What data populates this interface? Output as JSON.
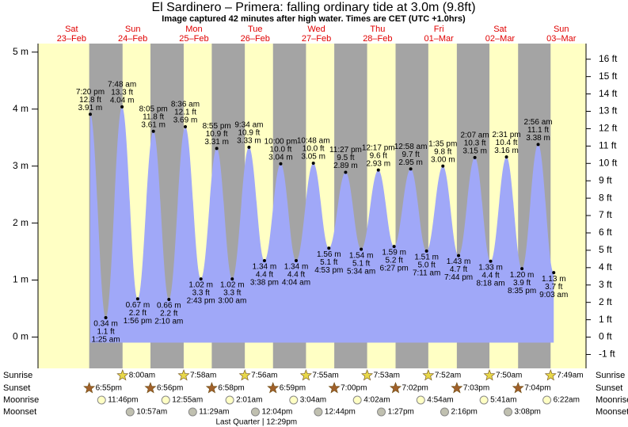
{
  "chart_data": {
    "type": "area",
    "title": "El Sardinero – Primera: falling  ordinary tide at 3.0m (9.8ft)",
    "subtitle": "Image captured 42 minutes after high water. Times are CET (UTC +1.0hrs)",
    "color": "#a0a8f8",
    "night_color": "#a4a4a4",
    "ylim": [
      -0.55,
      5.15
    ],
    "yticks": [
      {
        "value": 0,
        "label": "0 m"
      },
      {
        "value": 1,
        "label": "1 m"
      },
      {
        "value": 2,
        "label": "2 m"
      },
      {
        "value": 3,
        "label": "3 m"
      },
      {
        "value": 4,
        "label": "4 m"
      },
      {
        "value": 5,
        "label": "5 m"
      }
    ],
    "y2lim": [
      -1.8,
      16.9
    ],
    "y2ticks": [
      {
        "value": -1,
        "label": "-1 ft"
      },
      {
        "value": 0,
        "label": "0 ft"
      },
      {
        "value": 1,
        "label": "1 ft"
      },
      {
        "value": 2,
        "label": "2 ft"
      },
      {
        "value": 3,
        "label": "3 ft"
      },
      {
        "value": 4,
        "label": "4 ft"
      },
      {
        "value": 5,
        "label": "5 ft"
      },
      {
        "value": 6,
        "label": "6 ft"
      },
      {
        "value": 7,
        "label": "7 ft"
      },
      {
        "value": 8,
        "label": "8 ft"
      },
      {
        "value": 9,
        "label": "9 ft"
      },
      {
        "value": 10,
        "label": "10 ft"
      },
      {
        "value": 11,
        "label": "11 ft"
      },
      {
        "value": 12,
        "label": "12 ft"
      },
      {
        "value": 13,
        "label": "13 ft"
      },
      {
        "value": 14,
        "label": "14 ft"
      },
      {
        "value": 15,
        "label": "15 ft"
      },
      {
        "value": 16,
        "label": "16 ft"
      }
    ],
    "row_labels": {
      "sunrise": "Sunrise",
      "sunset": "Sunset",
      "moonrise": "Moonrise",
      "moonset": "Moonset"
    },
    "days": [
      {
        "day": "Sat",
        "date": "23–Feb",
        "sunset": "6:55pm",
        "moonrise": "11:46pm",
        "extrema": [
          {
            "time": "7:20 pm",
            "kind": "high",
            "height": 3.91,
            "height_label": "3.91 m",
            "feet_label": "12.8 ft"
          }
        ]
      },
      {
        "day": "Sun",
        "date": "24–Feb",
        "sunrise": "8:00am",
        "sunset": "6:56pm",
        "moonset": "10:57am",
        "extrema": [
          {
            "time": "1:25 am",
            "kind": "low",
            "height": 0.34,
            "height_label": "0.34 m",
            "feet_label": "1.1 ft"
          },
          {
            "time": "7:48 am",
            "kind": "high",
            "height": 4.04,
            "height_label": "4.04 m",
            "feet_label": "13.3 ft"
          },
          {
            "time": "1:56 pm",
            "kind": "low",
            "height": 0.67,
            "height_label": "0.67 m",
            "feet_label": "2.2 ft"
          },
          {
            "time": "8:05 pm",
            "kind": "high",
            "height": 3.61,
            "height_label": "3.61 m",
            "feet_label": "11.8 ft"
          }
        ]
      },
      {
        "day": "Mon",
        "date": "25–Feb",
        "sunrise": "7:58am",
        "sunset": "6:58pm",
        "moonrise": "12:55am",
        "moonset": "11:29am",
        "extrema": [
          {
            "time": "2:10 am",
            "kind": "low",
            "height": 0.66,
            "height_label": "0.66 m",
            "feet_label": "2.2 ft"
          },
          {
            "time": "8:36 am",
            "kind": "high",
            "height": 3.69,
            "height_label": "3.69 m",
            "feet_label": "12.1 ft"
          },
          {
            "time": "2:43 pm",
            "kind": "low",
            "height": 1.02,
            "height_label": "1.02 m",
            "feet_label": "3.3 ft"
          },
          {
            "time": "8:55 pm",
            "kind": "high",
            "height": 3.31,
            "height_label": "3.31 m",
            "feet_label": "10.9 ft"
          }
        ]
      },
      {
        "day": "Tue",
        "date": "26–Feb",
        "sunrise": "7:56am",
        "sunset": "6:59pm",
        "moonrise": "2:01am",
        "moonset": "12:04pm",
        "moon_phase": "Last Quarter | 12:29pm",
        "extrema": [
          {
            "time": "3:00 am",
            "kind": "low",
            "height": 1.02,
            "height_label": "1.02 m",
            "feet_label": "3.3 ft"
          },
          {
            "time": "9:34 am",
            "kind": "high",
            "height": 3.33,
            "height_label": "3.33 m",
            "feet_label": "10.9 ft"
          },
          {
            "time": "3:38 pm",
            "kind": "low",
            "height": 1.34,
            "height_label": "1.34 m",
            "feet_label": "4.4 ft"
          },
          {
            "time": "10:00 pm",
            "kind": "high",
            "height": 3.04,
            "height_label": "3.04 m",
            "feet_label": "10.0 ft"
          }
        ]
      },
      {
        "day": "Wed",
        "date": "27–Feb",
        "sunrise": "7:55am",
        "sunset": "7:00pm",
        "moonrise": "3:04am",
        "moonset": "12:44pm",
        "extrema": [
          {
            "time": "4:04 am",
            "kind": "low",
            "height": 1.34,
            "height_label": "1.34 m",
            "feet_label": "4.4 ft"
          },
          {
            "time": "10:48 am",
            "kind": "high",
            "height": 3.05,
            "height_label": "3.05 m",
            "feet_label": "10.0 ft"
          },
          {
            "time": "4:53 pm",
            "kind": "low",
            "height": 1.56,
            "height_label": "1.56 m",
            "feet_label": "5.1 ft"
          },
          {
            "time": "11:27 pm",
            "kind": "high",
            "height": 2.89,
            "height_label": "2.89 m",
            "feet_label": "9.5 ft"
          }
        ]
      },
      {
        "day": "Thu",
        "date": "28–Feb",
        "sunrise": "7:53am",
        "sunset": "7:02pm",
        "moonrise": "4:02am",
        "moonset": "1:27pm",
        "extrema": [
          {
            "time": "5:34 am",
            "kind": "low",
            "height": 1.54,
            "height_label": "1.54 m",
            "feet_label": "5.1 ft"
          },
          {
            "time": "12:17 pm",
            "kind": "high",
            "height": 2.93,
            "height_label": "2.93 m",
            "feet_label": "9.6 ft"
          },
          {
            "time": "6:27 pm",
            "kind": "low",
            "height": 1.59,
            "height_label": "1.59 m",
            "feet_label": "5.2 ft"
          }
        ]
      },
      {
        "day": "Fri",
        "date": "01–Mar",
        "sunrise": "7:52am",
        "sunset": "7:03pm",
        "moonrise": "4:54am",
        "moonset": "2:16pm",
        "extrema": [
          {
            "time": "12:58 am",
            "kind": "high",
            "height": 2.95,
            "height_label": "2.95 m",
            "feet_label": "9.7 ft"
          },
          {
            "time": "7:11 am",
            "kind": "low",
            "height": 1.51,
            "height_label": "1.51 m",
            "feet_label": "5.0 ft"
          },
          {
            "time": "1:35 pm",
            "kind": "high",
            "height": 3.0,
            "height_label": "3.00 m",
            "feet_label": "9.8 ft"
          },
          {
            "time": "7:44 pm",
            "kind": "low",
            "height": 1.43,
            "height_label": "1.43 m",
            "feet_label": "4.7 ft"
          }
        ]
      },
      {
        "day": "Sat",
        "date": "02–Mar",
        "sunrise": "7:50am",
        "sunset": "7:04pm",
        "moonrise": "5:41am",
        "moonset": "3:08pm",
        "extrema": [
          {
            "time": "2:07 am",
            "kind": "high",
            "height": 3.15,
            "height_label": "3.15 m",
            "feet_label": "10.3 ft"
          },
          {
            "time": "8:18 am",
            "kind": "low",
            "height": 1.33,
            "height_label": "1.33 m",
            "feet_label": "4.4 ft"
          },
          {
            "time": "2:31 pm",
            "kind": "high",
            "height": 3.16,
            "height_label": "3.16 m",
            "feet_label": "10.4 ft"
          },
          {
            "time": "8:35 pm",
            "kind": "low",
            "height": 1.2,
            "height_label": "1.20 m",
            "feet_label": "3.9 ft"
          }
        ]
      },
      {
        "day": "Sun",
        "date": "03–Mar",
        "sunrise": "7:49am",
        "moonrise": "6:22am",
        "extrema": [
          {
            "time": "2:56 am",
            "kind": "high",
            "height": 3.38,
            "height_label": "3.38 m",
            "feet_label": "11.1 ft"
          },
          {
            "time": "9:03 am",
            "kind": "low",
            "height": 1.13,
            "height_label": "1.13 m",
            "feet_label": "3.7 ft"
          }
        ]
      }
    ]
  }
}
